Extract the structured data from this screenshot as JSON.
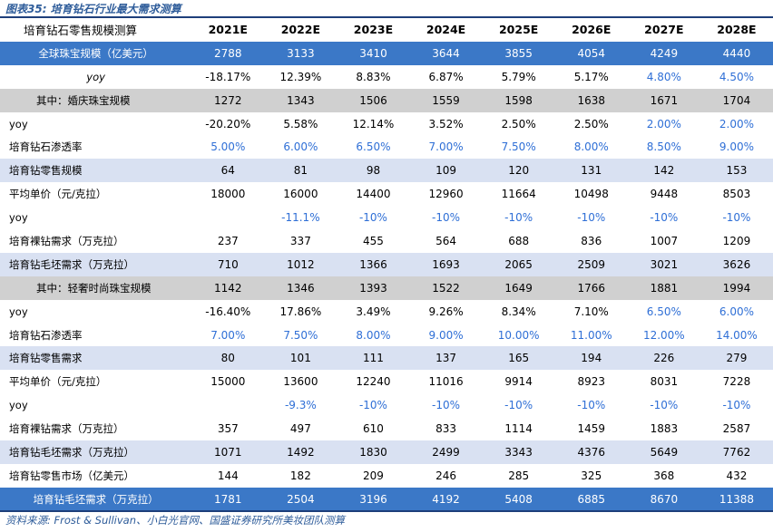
{
  "figure_title": "图表35:  培育钻石行业最大需求测算",
  "source": "资料来源:  Frost & Sullivan、小白光官网、国盛证券研究所美妆团队测算",
  "header": {
    "label": "培育钻石零售规模测算",
    "years": [
      "2021E",
      "2022E",
      "2023E",
      "2024E",
      "2025E",
      "2026E",
      "2027E",
      "2028E"
    ]
  },
  "rows": [
    {
      "style": "blue",
      "label": "全球珠宝规模（亿美元）",
      "values": [
        "2788",
        "3133",
        "3410",
        "3644",
        "3855",
        "4054",
        "4249",
        "4440"
      ],
      "blue_from": 99
    },
    {
      "style": "yoy-top",
      "label": "yoy",
      "values": [
        "-18.17%",
        "12.39%",
        "8.83%",
        "6.87%",
        "5.79%",
        "5.17%",
        "4.80%",
        "4.50%"
      ],
      "blue_from": 6
    },
    {
      "style": "grey",
      "label": "其中：婚庆珠宝规模",
      "values": [
        "1272",
        "1343",
        "1506",
        "1559",
        "1598",
        "1638",
        "1671",
        "1704"
      ],
      "blue_from": 99
    },
    {
      "style": "plain",
      "label": "yoy",
      "values": [
        "-20.20%",
        "5.58%",
        "12.14%",
        "3.52%",
        "2.50%",
        "2.50%",
        "2.00%",
        "2.00%"
      ],
      "blue_from": 6
    },
    {
      "style": "plain",
      "label": "培育钻石渗透率",
      "values": [
        "5.00%",
        "6.00%",
        "6.50%",
        "7.00%",
        "7.50%",
        "8.00%",
        "8.50%",
        "9.00%"
      ],
      "blue_from": 0
    },
    {
      "style": "light",
      "label": "培育钻零售规模",
      "values": [
        "64",
        "81",
        "98",
        "109",
        "120",
        "131",
        "142",
        "153"
      ],
      "blue_from": 99
    },
    {
      "style": "plain",
      "label": "平均单价（元/克拉）",
      "values": [
        "18000",
        "16000",
        "14400",
        "12960",
        "11664",
        "10498",
        "9448",
        "8503"
      ],
      "blue_from": 99
    },
    {
      "style": "plain",
      "label": "yoy",
      "values": [
        "",
        "-11.1%",
        "-10%",
        "-10%",
        "-10%",
        "-10%",
        "-10%",
        "-10%"
      ],
      "blue_from": 1
    },
    {
      "style": "plain",
      "label": "培育裸钻需求（万克拉）",
      "values": [
        "237",
        "337",
        "455",
        "564",
        "688",
        "836",
        "1007",
        "1209"
      ],
      "blue_from": 99
    },
    {
      "style": "light",
      "label": "培育钻毛坯需求（万克拉）",
      "values": [
        "710",
        "1012",
        "1366",
        "1693",
        "2065",
        "2509",
        "3021",
        "3626"
      ],
      "blue_from": 99
    },
    {
      "style": "grey",
      "label": "其中：轻奢时尚珠宝规模",
      "values": [
        "1142",
        "1346",
        "1393",
        "1522",
        "1649",
        "1766",
        "1881",
        "1994"
      ],
      "blue_from": 99
    },
    {
      "style": "plain",
      "label": "yoy",
      "values": [
        "-16.40%",
        "17.86%",
        "3.49%",
        "9.26%",
        "8.34%",
        "7.10%",
        "6.50%",
        "6.00%"
      ],
      "blue_from": 6
    },
    {
      "style": "plain",
      "label": "培育钻石渗透率",
      "values": [
        "7.00%",
        "7.50%",
        "8.00%",
        "9.00%",
        "10.00%",
        "11.00%",
        "12.00%",
        "14.00%"
      ],
      "blue_from": 0
    },
    {
      "style": "light",
      "label": "培育钻零售需求",
      "values": [
        "80",
        "101",
        "111",
        "137",
        "165",
        "194",
        "226",
        "279"
      ],
      "blue_from": 99
    },
    {
      "style": "plain",
      "label": "平均单价（元/克拉）",
      "values": [
        "15000",
        "13600",
        "12240",
        "11016",
        "9914",
        "8923",
        "8031",
        "7228"
      ],
      "blue_from": 99
    },
    {
      "style": "plain",
      "label": "yoy",
      "values": [
        "",
        "-9.3%",
        "-10%",
        "-10%",
        "-10%",
        "-10%",
        "-10%",
        "-10%"
      ],
      "blue_from": 1
    },
    {
      "style": "plain",
      "label": "培育裸钻需求（万克拉）",
      "values": [
        "357",
        "497",
        "610",
        "833",
        "1114",
        "1459",
        "1883",
        "2587"
      ],
      "blue_from": 99
    },
    {
      "style": "light",
      "label": "培育钻毛坯需求（万克拉）",
      "values": [
        "1071",
        "1492",
        "1830",
        "2499",
        "3343",
        "4376",
        "5649",
        "7762"
      ],
      "blue_from": 99
    },
    {
      "style": "plain",
      "label": "培育钻零售市场（亿美元）",
      "values": [
        "144",
        "182",
        "209",
        "246",
        "285",
        "325",
        "368",
        "432"
      ],
      "blue_from": 99
    },
    {
      "style": "blue",
      "label": "培育钻毛坯需求（万克拉）",
      "values": [
        "1781",
        "2504",
        "3196",
        "4192",
        "5408",
        "6885",
        "8670",
        "11388"
      ],
      "blue_from": 99
    }
  ]
}
